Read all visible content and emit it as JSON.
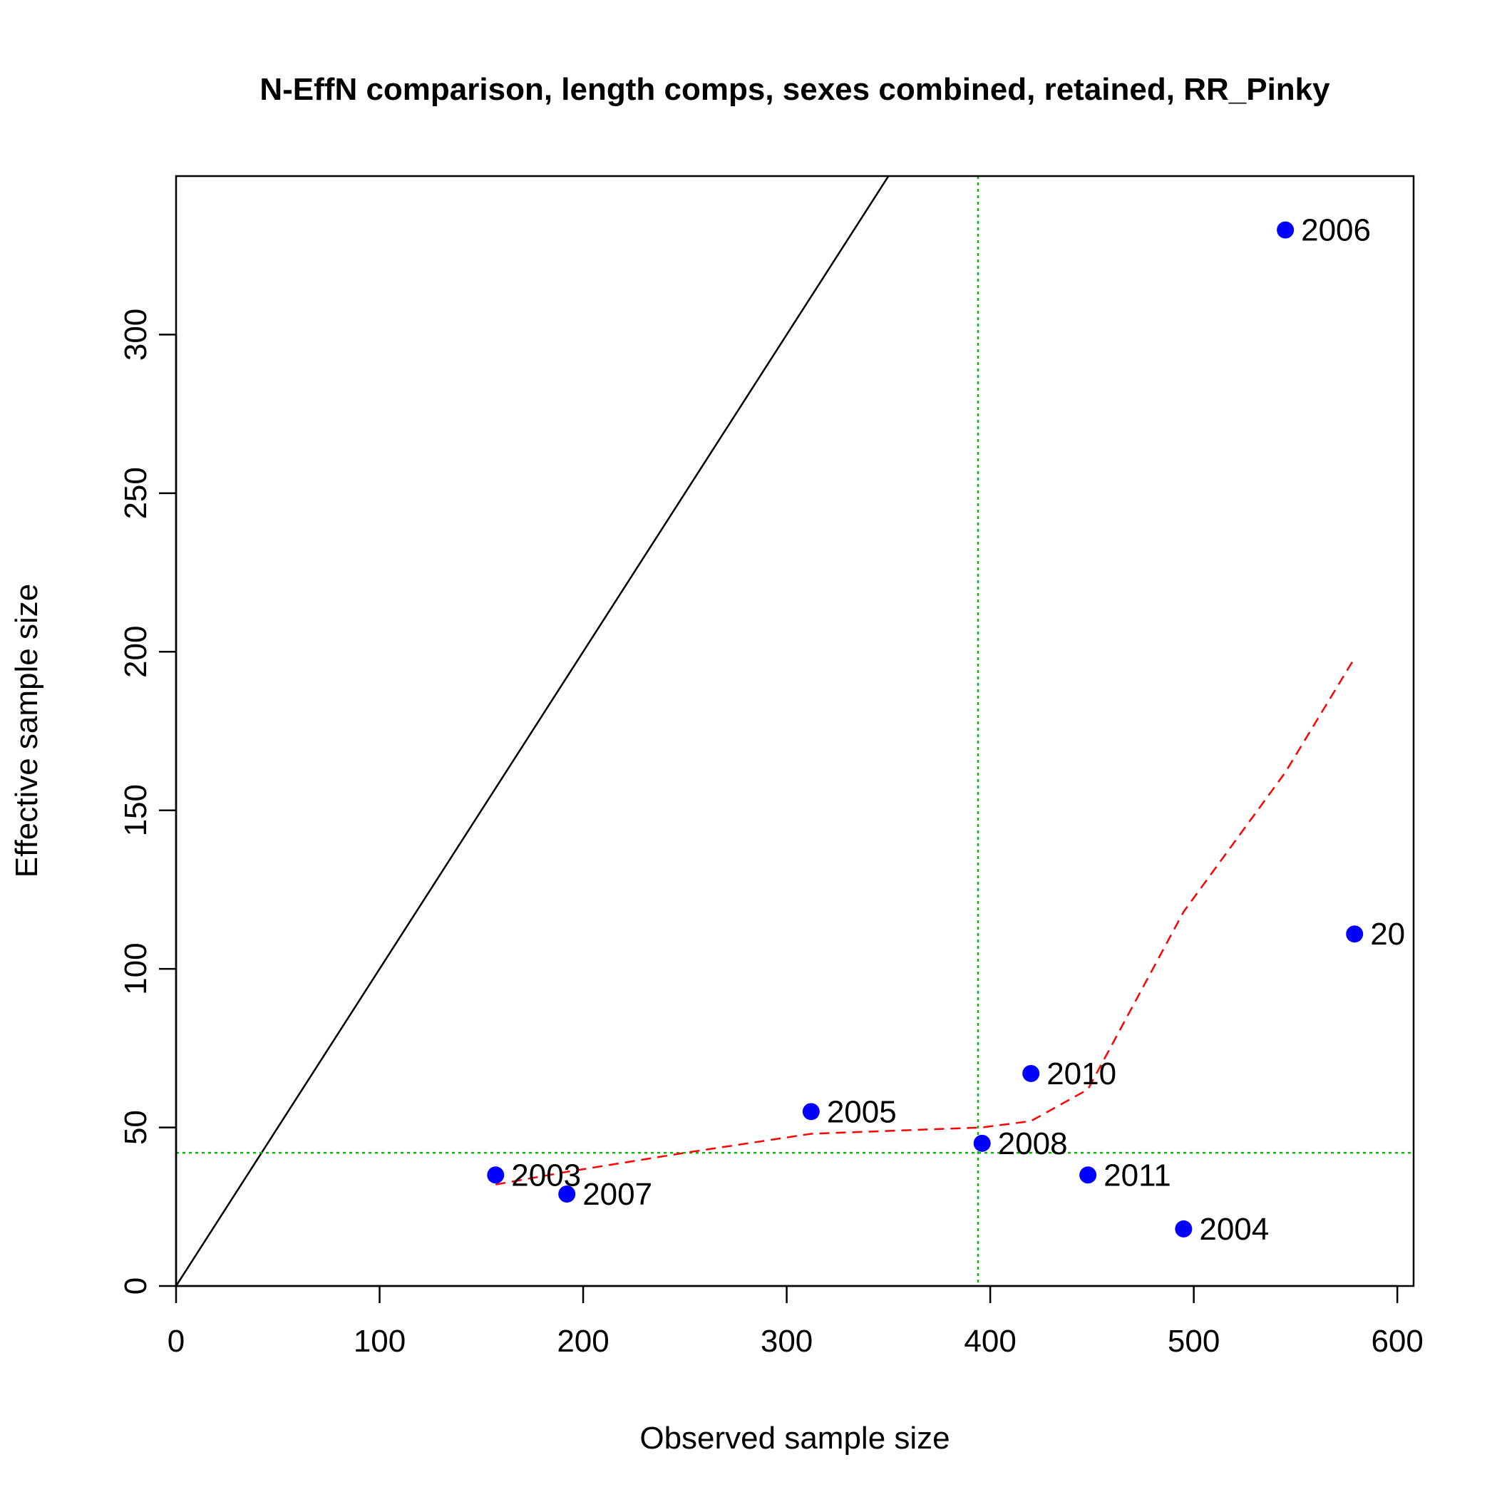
{
  "chart_data": {
    "type": "scatter",
    "title": "N-EffN comparison, length comps, sexes combined, retained, RR_Pinky",
    "xlabel": "Observed sample size",
    "ylabel": "Effective sample size",
    "xlim": [
      0,
      608
    ],
    "ylim": [
      0,
      350
    ],
    "x_ticks": [
      0,
      100,
      200,
      300,
      400,
      500,
      600
    ],
    "y_ticks": [
      0,
      50,
      100,
      150,
      200,
      250,
      300
    ],
    "points": [
      {
        "label": "2003",
        "x": 157,
        "y": 35
      },
      {
        "label": "2007",
        "x": 192,
        "y": 29
      },
      {
        "label": "2005",
        "x": 312,
        "y": 55
      },
      {
        "label": "2008",
        "x": 396,
        "y": 45
      },
      {
        "label": "2010",
        "x": 420,
        "y": 67
      },
      {
        "label": "2011",
        "x": 448,
        "y": 35
      },
      {
        "label": "2004",
        "x": 495,
        "y": 18
      },
      {
        "label": "2006",
        "x": 545,
        "y": 333
      },
      {
        "label": "20",
        "x": 579,
        "y": 111
      }
    ],
    "reference_line": {
      "slope": 1,
      "intercept": 0,
      "color": "#000000"
    },
    "smoother": {
      "color": "#ff0000",
      "style": "dashed",
      "x": [
        157,
        192,
        250,
        312,
        396,
        420,
        448,
        495,
        545,
        579
      ],
      "y": [
        32,
        36,
        42,
        48,
        50,
        52,
        62,
        118,
        162,
        198
      ]
    },
    "mean_lines": {
      "x": 394,
      "y": 42,
      "color": "#00bb00",
      "style": "dotted"
    },
    "point_color": "#0000ff",
    "grid": false
  }
}
